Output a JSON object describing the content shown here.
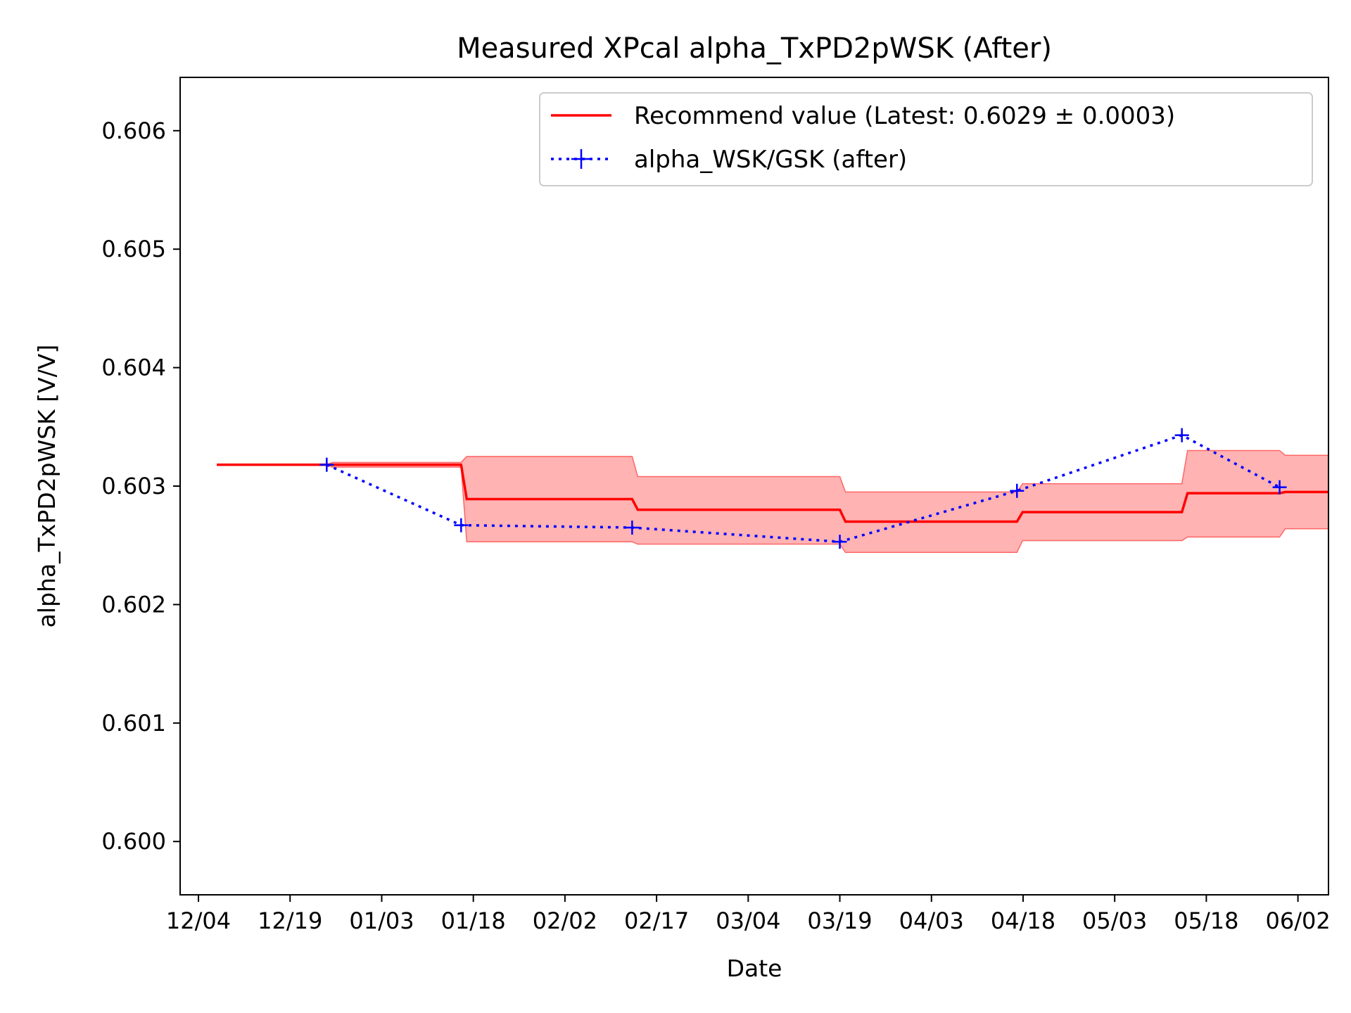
{
  "chart_data": {
    "type": "line",
    "title": "Measured XPcal alpha_TxPD2pWSK (After)",
    "xlabel": "Date",
    "ylabel": "alpha_TxPD2pWSK [V/V]",
    "x_ticks": [
      "12/04",
      "12/19",
      "01/03",
      "01/18",
      "02/02",
      "02/17",
      "03/04",
      "03/19",
      "04/03",
      "04/18",
      "05/03",
      "05/18",
      "06/02"
    ],
    "x_range": [
      "12/01",
      "06/07"
    ],
    "y_ticks": [
      "0.600",
      "0.601",
      "0.602",
      "0.603",
      "0.604",
      "0.605",
      "0.606"
    ],
    "ylim": [
      0.59955,
      0.60645
    ],
    "grid": false,
    "legend_position": "top-right",
    "colors": {
      "recommend": "#ff0000",
      "band": "#ff9999",
      "measured": "#0000ff"
    },
    "series": [
      {
        "name": "Recommend value (Latest: 0.6029 ± 0.0003)",
        "style": "step-line-with-band",
        "points": [
          {
            "x": "12/07",
            "y": 0.60318,
            "lo": 0.60318,
            "hi": 0.60318
          },
          {
            "x": "12/25",
            "y": 0.60318,
            "lo": 0.60316,
            "hi": 0.6032
          },
          {
            "x": "01/16",
            "y": 0.60289,
            "lo": 0.60253,
            "hi": 0.60325
          },
          {
            "x": "02/13",
            "y": 0.6028,
            "lo": 0.60251,
            "hi": 0.60308
          },
          {
            "x": "03/19",
            "y": 0.6027,
            "lo": 0.60244,
            "hi": 0.60295
          },
          {
            "x": "04/17",
            "y": 0.60278,
            "lo": 0.60254,
            "hi": 0.60302
          },
          {
            "x": "05/14",
            "y": 0.60294,
            "lo": 0.60257,
            "hi": 0.6033
          },
          {
            "x": "05/30",
            "y": 0.60295,
            "lo": 0.60264,
            "hi": 0.60326
          }
        ],
        "end_x": "06/07"
      },
      {
        "name": "alpha_WSK/GSK (after)",
        "style": "dotted-line-plus-markers",
        "points": [
          {
            "x": "12/25",
            "y": 0.60318
          },
          {
            "x": "01/16",
            "y": 0.60267
          },
          {
            "x": "02/13",
            "y": 0.60265
          },
          {
            "x": "03/19",
            "y": 0.60253
          },
          {
            "x": "04/17",
            "y": 0.60296
          },
          {
            "x": "05/14",
            "y": 0.60343
          },
          {
            "x": "05/30",
            "y": 0.60299
          }
        ]
      }
    ]
  }
}
